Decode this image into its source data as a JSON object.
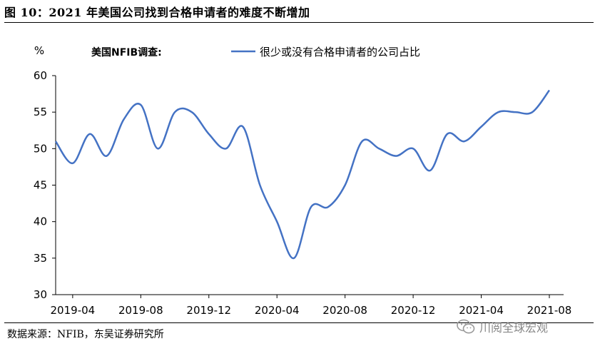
{
  "header": {
    "title": "图 10：2021 年美国公司找到合格申请者的难度不断增加"
  },
  "footer": {
    "source": "数据来源：NFIB，东吴证券研究所",
    "watermark": "川阅全球宏观",
    "watermark_icon": "wechat-icon"
  },
  "chart_data": {
    "type": "line",
    "ylabel": "%",
    "annotation": "美国NFIB调查:",
    "ylim": [
      30,
      60
    ],
    "yticks": [
      30,
      35,
      40,
      45,
      50,
      55,
      60
    ],
    "xticks": [
      "2019-04",
      "2019-08",
      "2019-12",
      "2020-04",
      "2020-08",
      "2020-12",
      "2021-04",
      "2021-08"
    ],
    "legend_position": "top-center",
    "grid": false,
    "series": [
      {
        "name": "很少或没有合格申请者的公司占比",
        "color": "#4472C4",
        "x": [
          "2019-03",
          "2019-04",
          "2019-05",
          "2019-06",
          "2019-07",
          "2019-08",
          "2019-09",
          "2019-10",
          "2019-11",
          "2019-12",
          "2020-01",
          "2020-02",
          "2020-03",
          "2020-04",
          "2020-05",
          "2020-06",
          "2020-07",
          "2020-08",
          "2020-09",
          "2020-10",
          "2020-11",
          "2020-12",
          "2021-01",
          "2021-02",
          "2021-03",
          "2021-04",
          "2021-05",
          "2021-06",
          "2021-07",
          "2021-08"
        ],
        "values": [
          51,
          48,
          52,
          49,
          54,
          56,
          50,
          55,
          55,
          52,
          50,
          53,
          45,
          40,
          35,
          42,
          42,
          45,
          51,
          50,
          49,
          50,
          47,
          52,
          51,
          53,
          55,
          55,
          55,
          58
        ]
      }
    ]
  }
}
